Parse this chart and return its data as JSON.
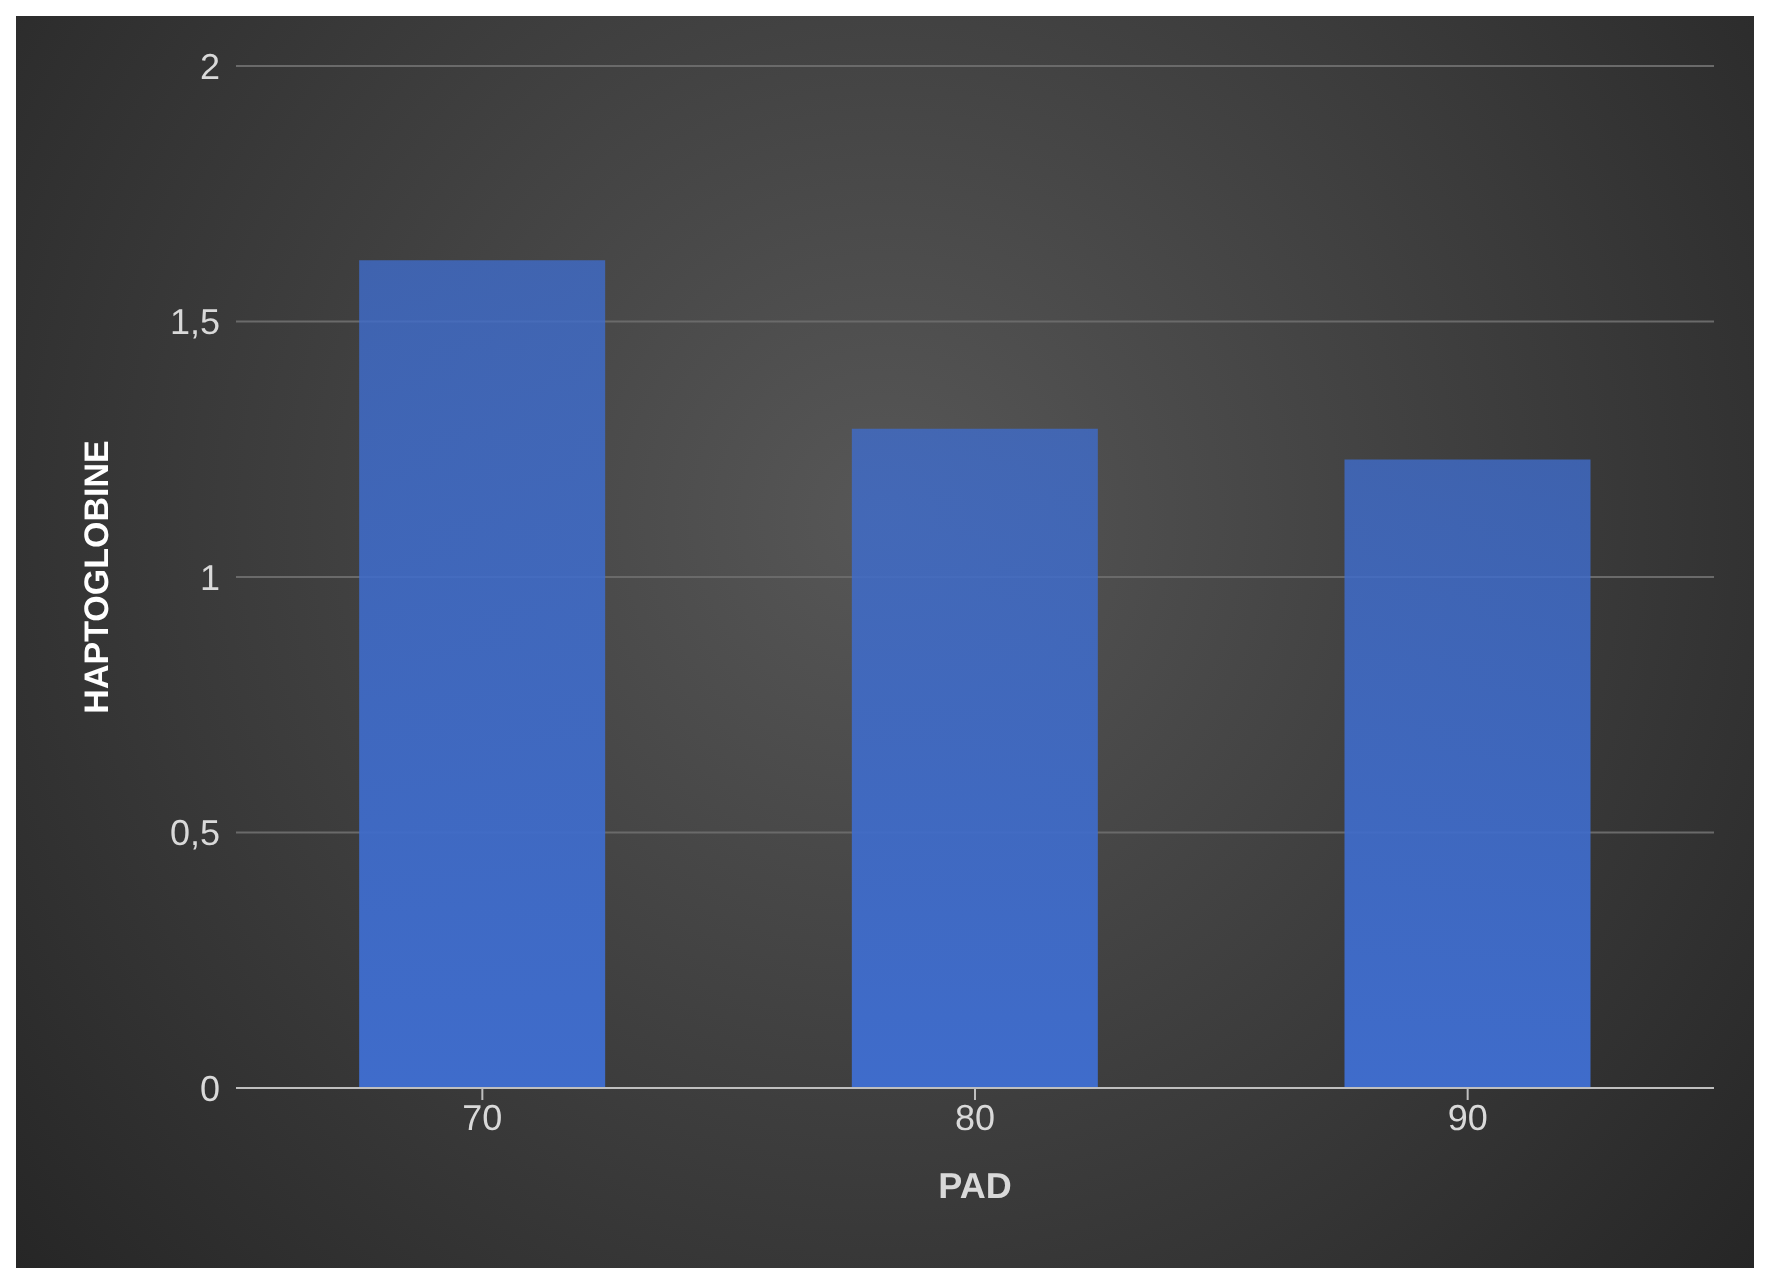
{
  "chart_data": {
    "type": "bar",
    "xlabel": "PAD",
    "ylabel": "HAPTOGLOBINE",
    "categories": [
      "70",
      "80",
      "90"
    ],
    "values": [
      1.62,
      1.29,
      1.23
    ],
    "color": "#3f6ccb",
    "ylim": [
      0,
      2
    ],
    "yticks": [
      0,
      {
        "value": 0.5,
        "label": "0,5"
      },
      1,
      {
        "value": 1.5,
        "label": "1,5"
      },
      2
    ],
    "grid": "y"
  }
}
